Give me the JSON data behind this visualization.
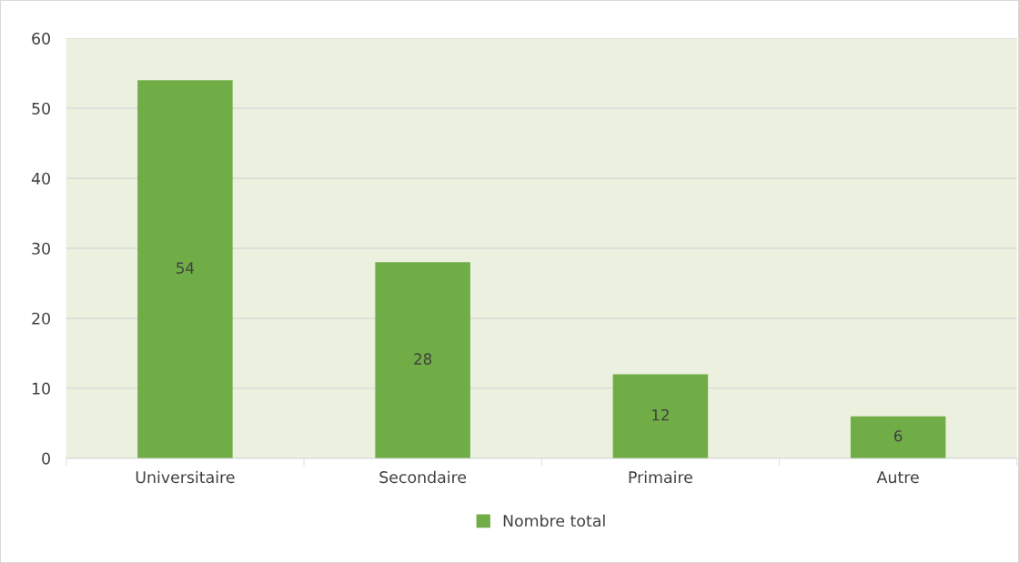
{
  "chart_data": {
    "type": "bar",
    "categories": [
      "Universitaire",
      "Secondaire",
      "Primaire",
      "Autre"
    ],
    "series": [
      {
        "name": "Nombre total",
        "color": "#70ad47",
        "values": [
          54,
          28,
          12,
          6
        ]
      }
    ],
    "ylim": [
      0,
      60
    ],
    "yticks": [
      0,
      10,
      20,
      30,
      40,
      50,
      60
    ],
    "grid": "y",
    "legend": "bottom",
    "data_labels": true
  }
}
